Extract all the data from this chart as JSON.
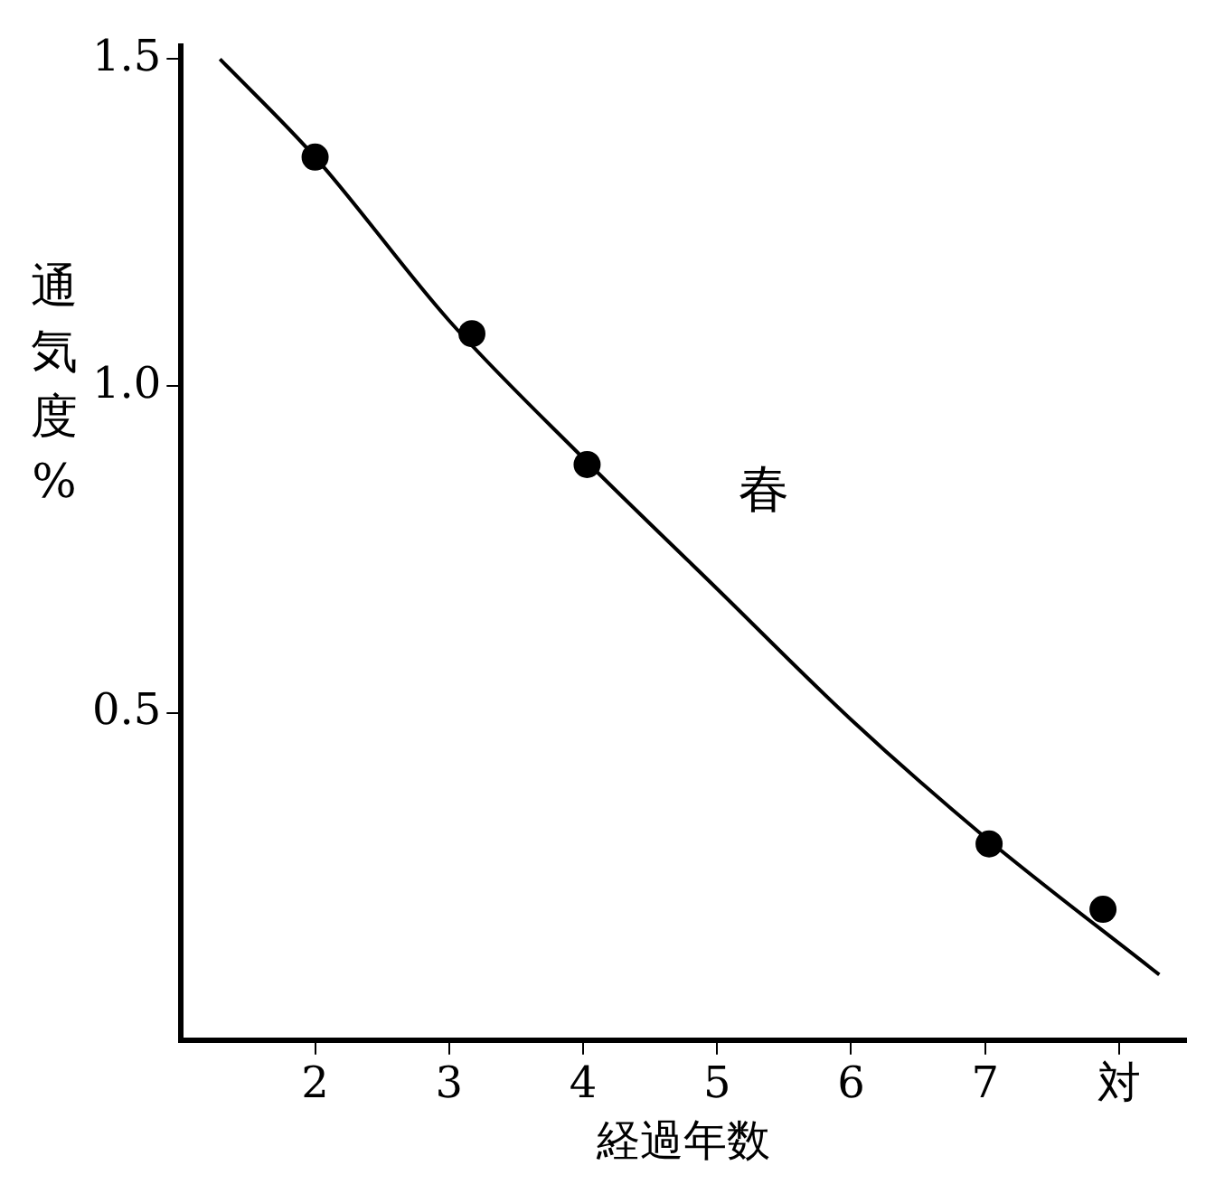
{
  "chart_data": {
    "type": "scatter",
    "xlabel": "経過年数",
    "ylabel": "通気度%",
    "xlim": [
      1,
      8.5
    ],
    "ylim": [
      0,
      1.52
    ],
    "xticks": [
      2,
      3,
      4,
      5,
      6,
      7,
      {
        "value": 8,
        "label": "対"
      }
    ],
    "yticks": [
      {
        "value": 0.5,
        "label": "0.5"
      },
      {
        "value": 1.0,
        "label": "1.0"
      },
      {
        "value": 1.5,
        "label": "1.5"
      }
    ],
    "grid": false,
    "legend": false,
    "series": [
      {
        "type": "line",
        "color": "#000000",
        "marker": "none",
        "x": [
          1.29,
          2,
          3,
          4,
          5,
          6,
          7,
          8.3
        ],
        "values": [
          1.5,
          1.35,
          1.1,
          0.89,
          0.69,
          0.49,
          0.31,
          0.1
        ]
      },
      {
        "color": "#000000",
        "marker": "circle",
        "x": [
          2,
          3.17,
          4.03,
          7.03,
          7.88
        ],
        "values": [
          1.35,
          1.08,
          0.88,
          0.3,
          0.2
        ]
      }
    ],
    "annotations": [
      "春"
    ]
  }
}
